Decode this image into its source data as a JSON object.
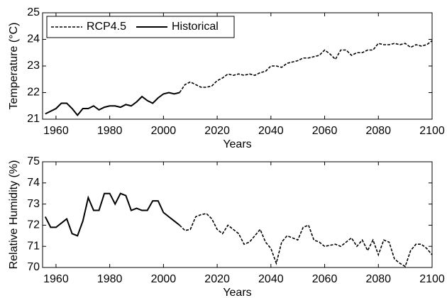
{
  "chart_data": [
    {
      "type": "line",
      "xlabel": "Years",
      "ylabel": "Temperature (°C)",
      "x": [
        1956,
        1958,
        1960,
        1962,
        1964,
        1966,
        1968,
        1970,
        1972,
        1974,
        1976,
        1978,
        1980,
        1982,
        1984,
        1986,
        1988,
        1990,
        1992,
        1994,
        1996,
        1998,
        2000,
        2002,
        2004,
        2006,
        2008,
        2010,
        2012,
        2014,
        2016,
        2018,
        2020,
        2022,
        2024,
        2026,
        2028,
        2030,
        2032,
        2034,
        2036,
        2038,
        2040,
        2042,
        2044,
        2046,
        2048,
        2050,
        2052,
        2054,
        2056,
        2058,
        2060,
        2062,
        2064,
        2066,
        2068,
        2070,
        2072,
        2074,
        2076,
        2078,
        2080,
        2082,
        2084,
        2086,
        2088,
        2090,
        2092,
        2094,
        2096,
        2098,
        2100
      ],
      "series": [
        {
          "name": "RCP4.5",
          "color": "#000000",
          "linestyle": "dotted",
          "values": [
            null,
            null,
            null,
            null,
            null,
            null,
            null,
            null,
            null,
            null,
            null,
            null,
            null,
            null,
            null,
            null,
            null,
            null,
            null,
            null,
            null,
            null,
            null,
            null,
            null,
            22.0,
            22.3,
            22.4,
            22.3,
            22.2,
            22.2,
            22.25,
            22.45,
            22.55,
            22.7,
            22.65,
            22.7,
            22.65,
            22.7,
            22.65,
            22.75,
            22.8,
            23.0,
            23.0,
            22.95,
            23.1,
            23.15,
            23.2,
            23.3,
            23.3,
            23.35,
            23.4,
            23.6,
            23.45,
            23.25,
            23.6,
            23.6,
            23.4,
            23.5,
            23.5,
            23.6,
            23.6,
            23.85,
            23.8,
            23.8,
            23.85,
            23.8,
            23.85,
            23.7,
            23.8,
            23.75,
            23.8,
            23.95
          ]
        },
        {
          "name": "Historical",
          "color": "#000000",
          "linestyle": "solid",
          "values": [
            21.2,
            21.3,
            21.4,
            21.6,
            21.6,
            21.4,
            21.15,
            21.4,
            21.4,
            21.5,
            21.35,
            21.45,
            21.5,
            21.5,
            21.45,
            21.55,
            21.5,
            21.65,
            21.85,
            21.7,
            21.6,
            21.8,
            21.95,
            22.0,
            21.95,
            22.0,
            null,
            null,
            null,
            null,
            null,
            null,
            null,
            null,
            null,
            null,
            null,
            null,
            null,
            null,
            null,
            null,
            null,
            null,
            null,
            null,
            null,
            null,
            null,
            null,
            null,
            null,
            null,
            null,
            null,
            null,
            null,
            null,
            null,
            null,
            null,
            null,
            null,
            null,
            null,
            null,
            null,
            null,
            null,
            null,
            null,
            null,
            null
          ]
        }
      ],
      "xlim": [
        1955,
        2100
      ],
      "xticks": [
        1960,
        1980,
        2000,
        2020,
        2040,
        2060,
        2080,
        2100
      ],
      "ylim": [
        21,
        25
      ],
      "yticks": [
        21,
        22,
        23,
        24,
        25
      ],
      "legend": "upper left"
    },
    {
      "type": "line",
      "xlabel": "Years",
      "ylabel": "Relative Humidity (%)",
      "x": [
        1956,
        1958,
        1960,
        1962,
        1964,
        1966,
        1968,
        1970,
        1972,
        1974,
        1976,
        1978,
        1980,
        1982,
        1984,
        1986,
        1988,
        1990,
        1992,
        1994,
        1996,
        1998,
        2000,
        2002,
        2004,
        2006,
        2008,
        2010,
        2012,
        2014,
        2016,
        2018,
        2020,
        2022,
        2024,
        2026,
        2028,
        2030,
        2032,
        2034,
        2036,
        2038,
        2040,
        2042,
        2044,
        2046,
        2048,
        2050,
        2052,
        2054,
        2056,
        2058,
        2060,
        2062,
        2064,
        2066,
        2068,
        2070,
        2072,
        2074,
        2076,
        2078,
        2080,
        2082,
        2084,
        2086,
        2088,
        2090,
        2092,
        2094,
        2096,
        2098,
        2100
      ],
      "series": [
        {
          "color": "#000000",
          "linestyle": "dotted",
          "values": [
            null,
            null,
            null,
            null,
            null,
            null,
            null,
            null,
            null,
            null,
            null,
            null,
            null,
            null,
            null,
            null,
            null,
            null,
            null,
            null,
            null,
            null,
            null,
            null,
            null,
            72.0,
            71.75,
            71.8,
            72.4,
            72.5,
            72.55,
            72.3,
            71.8,
            71.6,
            72.0,
            71.8,
            71.6,
            71.1,
            71.2,
            71.5,
            71.8,
            71.2,
            70.9,
            70.2,
            71.2,
            71.5,
            71.4,
            71.3,
            71.9,
            72.0,
            71.3,
            71.2,
            71.0,
            71.05,
            71.1,
            71.0,
            71.2,
            71.4,
            71.0,
            71.3,
            70.8,
            71.3,
            70.6,
            71.3,
            71.2,
            70.4,
            70.2,
            70.05,
            70.8,
            71.1,
            71.1,
            70.9,
            70.6
          ]
        },
        {
          "color": "#000000",
          "linestyle": "solid",
          "values": [
            72.4,
            71.9,
            71.9,
            72.1,
            72.3,
            71.6,
            71.5,
            72.2,
            73.3,
            72.7,
            72.7,
            73.5,
            73.5,
            73.0,
            73.5,
            73.4,
            72.7,
            72.8,
            72.7,
            72.7,
            73.15,
            73.15,
            72.6,
            72.4,
            72.2,
            72.0,
            null,
            null,
            null,
            null,
            null,
            null,
            null,
            null,
            null,
            null,
            null,
            null,
            null,
            null,
            null,
            null,
            null,
            null,
            null,
            null,
            null,
            null,
            null,
            null,
            null,
            null,
            null,
            null,
            null,
            null,
            null,
            null,
            null,
            null,
            null,
            null,
            null,
            null,
            null,
            null,
            null,
            null,
            null,
            null,
            null,
            null,
            null
          ]
        }
      ],
      "xlim": [
        1955,
        2100
      ],
      "xticks": [
        1960,
        1980,
        2000,
        2020,
        2040,
        2060,
        2080,
        2100
      ],
      "ylim": [
        70,
        75
      ],
      "yticks": [
        70,
        71,
        72,
        73,
        74,
        75
      ]
    }
  ]
}
